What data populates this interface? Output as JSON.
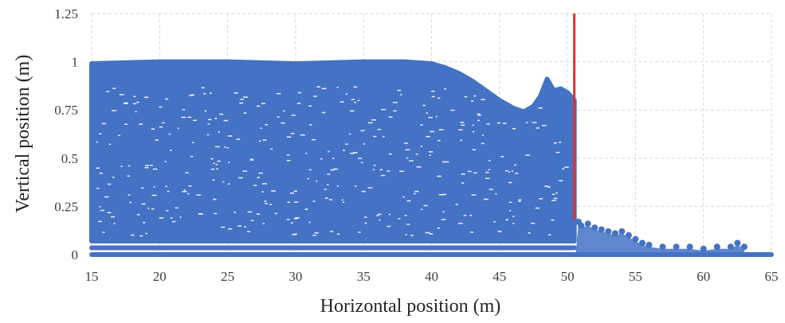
{
  "chart_data": {
    "type": "scatter",
    "title": "",
    "xlabel": "Horizontal position (m)",
    "ylabel": "Vertical position (m)",
    "xlim": [
      15,
      65
    ],
    "ylim": [
      0,
      1.25
    ],
    "x_ticks": [
      "15",
      "20",
      "25",
      "30",
      "35",
      "40",
      "45",
      "50",
      "55",
      "60",
      "65"
    ],
    "y_ticks": [
      "0",
      "0.25",
      "0.5",
      "0.75",
      "1",
      "1.25"
    ],
    "grid": true,
    "legend": "none",
    "series": [
      {
        "color": "#4472c4",
        "marker": "circle",
        "fill_upper_boundary": [
          [
            15,
            0.99
          ],
          [
            20,
            1.0
          ],
          [
            25,
            1.0
          ],
          [
            30,
            0.99
          ],
          [
            35,
            1.0
          ],
          [
            38,
            1.0
          ],
          [
            40,
            0.99
          ],
          [
            41,
            0.97
          ],
          [
            42,
            0.94
          ],
          [
            43,
            0.9
          ],
          [
            44,
            0.85
          ],
          [
            45,
            0.8
          ],
          [
            46,
            0.76
          ],
          [
            46.8,
            0.74
          ],
          [
            47.5,
            0.77
          ],
          [
            48,
            0.82
          ],
          [
            48.5,
            0.91
          ],
          [
            49,
            0.85
          ],
          [
            49.5,
            0.86
          ],
          [
            50,
            0.84
          ],
          [
            50.5,
            0.8
          ]
        ],
        "fill_lower_y": 0.07,
        "rows": [
          {
            "y": 0.0,
            "x_range": [
              15,
              65
            ]
          },
          {
            "y": 0.035,
            "x_range": [
              15,
              50.5
            ]
          }
        ],
        "scatter_points": [
          [
            50.8,
            0.17
          ],
          [
            51,
            0.15
          ],
          [
            51.5,
            0.16
          ],
          [
            52,
            0.14
          ],
          [
            52.5,
            0.13
          ],
          [
            53,
            0.12
          ],
          [
            53.5,
            0.11
          ],
          [
            54,
            0.12
          ],
          [
            54.5,
            0.1
          ],
          [
            55,
            0.08
          ],
          [
            55.5,
            0.06
          ],
          [
            56,
            0.05
          ],
          [
            57,
            0.04
          ],
          [
            58,
            0.04
          ],
          [
            59,
            0.04
          ],
          [
            60,
            0.03
          ],
          [
            61,
            0.04
          ],
          [
            62,
            0.04
          ],
          [
            62.5,
            0.06
          ],
          [
            63,
            0.04
          ]
        ]
      },
      {
        "color": "#e03030",
        "type": "line",
        "x": [
          50.5,
          50.5
        ],
        "y": [
          0.18,
          1.25
        ]
      }
    ]
  }
}
